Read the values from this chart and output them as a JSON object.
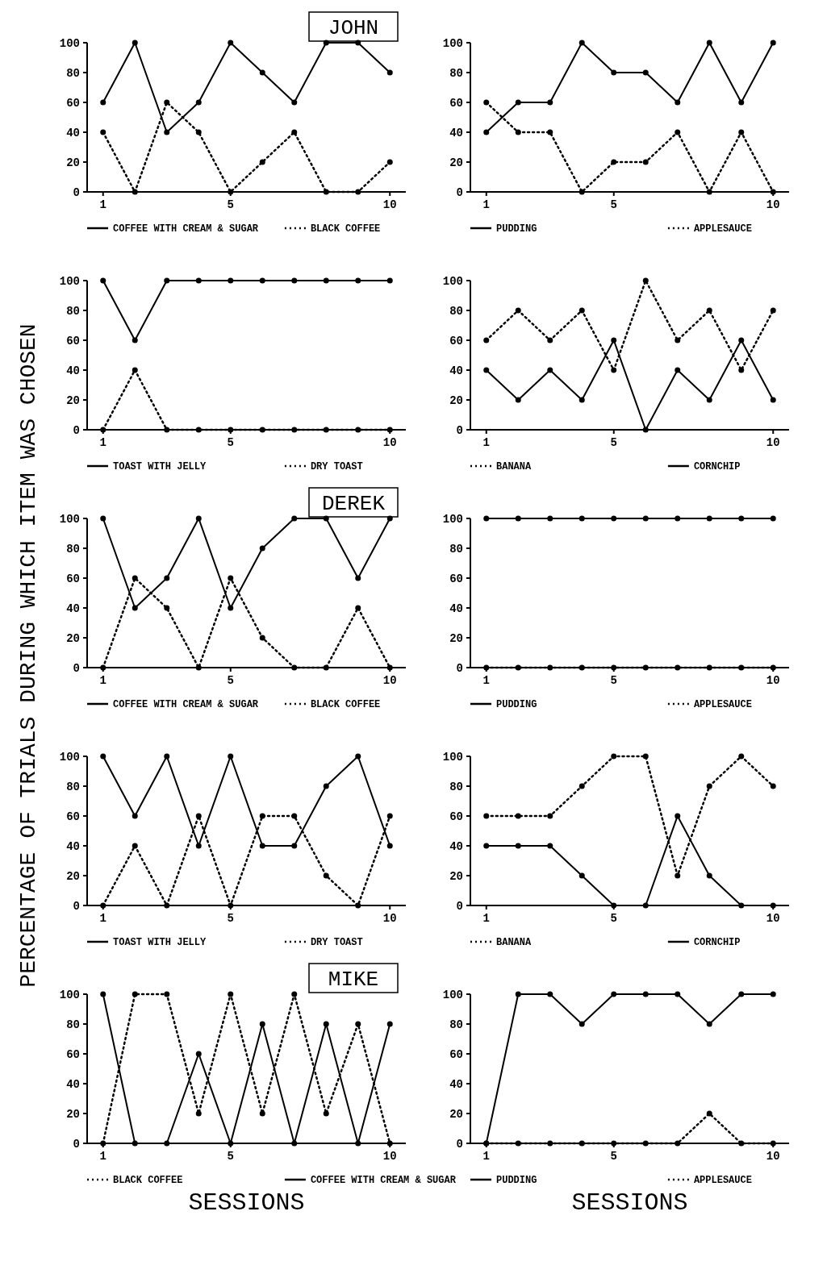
{
  "chart_data": [
    {
      "type": "line",
      "title": "JOHN",
      "ylabel": "PERCENTAGE OF TRIALS DURING WHICH ITEM WAS CHOSEN",
      "x": [
        1,
        2,
        3,
        4,
        5,
        6,
        7,
        8,
        9,
        10
      ],
      "xlim": [
        0.5,
        10.5
      ],
      "ylim": [
        0,
        100
      ],
      "xticks": [
        1,
        5,
        10
      ],
      "yticks": [
        0,
        20,
        40,
        60,
        80,
        100
      ],
      "legend": "bottom",
      "marker": "circle",
      "series": [
        {
          "name": "COFFEE WITH CREAM & SUGAR",
          "color": "#000000",
          "line_style": "solid",
          "values": [
            60,
            100,
            40,
            60,
            100,
            80,
            60,
            100,
            100,
            80
          ]
        },
        {
          "name": "BLACK COFFEE",
          "color": "#000000",
          "line_style": "dotted",
          "values": [
            40,
            0,
            60,
            40,
            0,
            20,
            40,
            0,
            0,
            20
          ]
        }
      ]
    },
    {
      "type": "line",
      "x": [
        1,
        2,
        3,
        4,
        5,
        6,
        7,
        8,
        9,
        10
      ],
      "xlim": [
        0.5,
        10.5
      ],
      "ylim": [
        0,
        100
      ],
      "xticks": [
        1,
        5,
        10
      ],
      "yticks": [
        0,
        20,
        40,
        60,
        80,
        100
      ],
      "legend": "bottom",
      "marker": "circle",
      "series": [
        {
          "name": "PUDDING",
          "color": "#000000",
          "line_style": "solid",
          "values": [
            40,
            60,
            60,
            100,
            80,
            80,
            60,
            100,
            60,
            100
          ]
        },
        {
          "name": "APPLESAUCE",
          "color": "#000000",
          "line_style": "dotted",
          "values": [
            60,
            40,
            40,
            0,
            20,
            20,
            40,
            0,
            40,
            0
          ]
        }
      ]
    },
    {
      "type": "line",
      "x": [
        1,
        2,
        3,
        4,
        5,
        6,
        7,
        8,
        9,
        10
      ],
      "xlim": [
        0.5,
        10.5
      ],
      "ylim": [
        0,
        100
      ],
      "xticks": [
        1,
        5,
        10
      ],
      "yticks": [
        0,
        20,
        40,
        60,
        80,
        100
      ],
      "legend": "bottom",
      "marker": "circle",
      "series": [
        {
          "name": "TOAST WITH JELLY",
          "color": "#000000",
          "line_style": "solid",
          "values": [
            100,
            60,
            100,
            100,
            100,
            100,
            100,
            100,
            100,
            100
          ]
        },
        {
          "name": "DRY TOAST",
          "color": "#000000",
          "line_style": "dotted",
          "values": [
            0,
            40,
            0,
            0,
            0,
            0,
            0,
            0,
            0,
            0
          ]
        }
      ]
    },
    {
      "type": "line",
      "x": [
        1,
        2,
        3,
        4,
        5,
        6,
        7,
        8,
        9,
        10
      ],
      "xlim": [
        0.5,
        10.5
      ],
      "ylim": [
        0,
        100
      ],
      "xticks": [
        1,
        5,
        10
      ],
      "yticks": [
        0,
        20,
        40,
        60,
        80,
        100
      ],
      "legend": "bottom",
      "marker": "circle",
      "series": [
        {
          "name": "BANANA",
          "color": "#000000",
          "line_style": "dotted",
          "values": [
            60,
            80,
            60,
            80,
            40,
            100,
            60,
            80,
            40,
            80
          ]
        },
        {
          "name": "CORNCHIP",
          "color": "#000000",
          "line_style": "solid",
          "values": [
            40,
            20,
            40,
            20,
            60,
            0,
            40,
            20,
            60,
            20
          ]
        }
      ]
    },
    {
      "type": "line",
      "title": "DEREK",
      "x": [
        1,
        2,
        3,
        4,
        5,
        6,
        7,
        8,
        9,
        10
      ],
      "xlim": [
        0.5,
        10.5
      ],
      "ylim": [
        0,
        100
      ],
      "xticks": [
        1,
        5,
        10
      ],
      "yticks": [
        0,
        20,
        40,
        60,
        80,
        100
      ],
      "legend": "bottom",
      "marker": "circle",
      "series": [
        {
          "name": "COFFEE WITH CREAM & SUGAR",
          "color": "#000000",
          "line_style": "solid",
          "values": [
            100,
            40,
            60,
            100,
            40,
            80,
            100,
            100,
            60,
            100
          ]
        },
        {
          "name": "BLACK COFFEE",
          "color": "#000000",
          "line_style": "dotted",
          "values": [
            0,
            60,
            40,
            0,
            60,
            20,
            0,
            0,
            40,
            0
          ]
        }
      ]
    },
    {
      "type": "line",
      "x": [
        1,
        2,
        3,
        4,
        5,
        6,
        7,
        8,
        9,
        10
      ],
      "xlim": [
        0.5,
        10.5
      ],
      "ylim": [
        0,
        100
      ],
      "xticks": [
        1,
        5,
        10
      ],
      "yticks": [
        0,
        20,
        40,
        60,
        80,
        100
      ],
      "legend": "bottom",
      "marker": "circle",
      "series": [
        {
          "name": "PUDDING",
          "color": "#000000",
          "line_style": "solid",
          "values": [
            100,
            100,
            100,
            100,
            100,
            100,
            100,
            100,
            100,
            100
          ]
        },
        {
          "name": "APPLESAUCE",
          "color": "#000000",
          "line_style": "dotted",
          "values": [
            0,
            0,
            0,
            0,
            0,
            0,
            0,
            0,
            0,
            0
          ]
        }
      ]
    },
    {
      "type": "line",
      "x": [
        1,
        2,
        3,
        4,
        5,
        6,
        7,
        8,
        9,
        10
      ],
      "xlim": [
        0.5,
        10.5
      ],
      "ylim": [
        0,
        100
      ],
      "xticks": [
        1,
        5,
        10
      ],
      "yticks": [
        0,
        20,
        40,
        60,
        80,
        100
      ],
      "legend": "bottom",
      "marker": "circle",
      "series": [
        {
          "name": "TOAST WITH JELLY",
          "color": "#000000",
          "line_style": "solid",
          "values": [
            100,
            60,
            100,
            40,
            100,
            40,
            40,
            80,
            100,
            40
          ]
        },
        {
          "name": "DRY TOAST",
          "color": "#000000",
          "line_style": "dotted",
          "values": [
            0,
            40,
            0,
            60,
            0,
            60,
            60,
            20,
            0,
            60
          ]
        }
      ]
    },
    {
      "type": "line",
      "x": [
        1,
        2,
        3,
        4,
        5,
        6,
        7,
        8,
        9,
        10
      ],
      "xlim": [
        0.5,
        10.5
      ],
      "ylim": [
        0,
        100
      ],
      "xticks": [
        1,
        5,
        10
      ],
      "yticks": [
        0,
        20,
        40,
        60,
        80,
        100
      ],
      "legend": "bottom",
      "marker": "circle",
      "series": [
        {
          "name": "BANANA",
          "color": "#000000",
          "line_style": "dotted",
          "values": [
            60,
            60,
            60,
            80,
            100,
            100,
            20,
            80,
            100,
            80
          ]
        },
        {
          "name": "CORNCHIP",
          "color": "#000000",
          "line_style": "solid",
          "values": [
            40,
            40,
            40,
            20,
            0,
            0,
            60,
            20,
            0,
            0
          ]
        }
      ]
    },
    {
      "type": "line",
      "title": "MIKE",
      "xlabel": "SESSIONS",
      "x": [
        1,
        2,
        3,
        4,
        5,
        6,
        7,
        8,
        9,
        10
      ],
      "xlim": [
        0.5,
        10.5
      ],
      "ylim": [
        0,
        100
      ],
      "xticks": [
        1,
        5,
        10
      ],
      "yticks": [
        0,
        20,
        40,
        60,
        80,
        100
      ],
      "legend": "bottom",
      "marker": "circle",
      "series": [
        {
          "name": "BLACK COFFEE",
          "color": "#000000",
          "line_style": "dotted",
          "values": [
            0,
            100,
            100,
            20,
            100,
            20,
            100,
            20,
            80,
            0
          ]
        },
        {
          "name": "COFFEE WITH CREAM & SUGAR",
          "color": "#000000",
          "line_style": "solid",
          "values": [
            100,
            0,
            0,
            60,
            0,
            80,
            0,
            80,
            0,
            80
          ]
        }
      ]
    },
    {
      "type": "line",
      "xlabel": "SESSIONS",
      "x": [
        1,
        2,
        3,
        4,
        5,
        6,
        7,
        8,
        9,
        10
      ],
      "xlim": [
        0.5,
        10.5
      ],
      "ylim": [
        0,
        100
      ],
      "xticks": [
        1,
        5,
        10
      ],
      "yticks": [
        0,
        20,
        40,
        60,
        80,
        100
      ],
      "legend": "bottom",
      "marker": "circle",
      "series": [
        {
          "name": "PUDDING",
          "color": "#000000",
          "line_style": "solid",
          "values": [
            0,
            100,
            100,
            80,
            100,
            100,
            100,
            80,
            100,
            100
          ]
        },
        {
          "name": "APPLESAUCE",
          "color": "#000000",
          "line_style": "dotted",
          "values": [
            0,
            0,
            0,
            0,
            0,
            0,
            0,
            20,
            0,
            0
          ]
        }
      ]
    }
  ]
}
